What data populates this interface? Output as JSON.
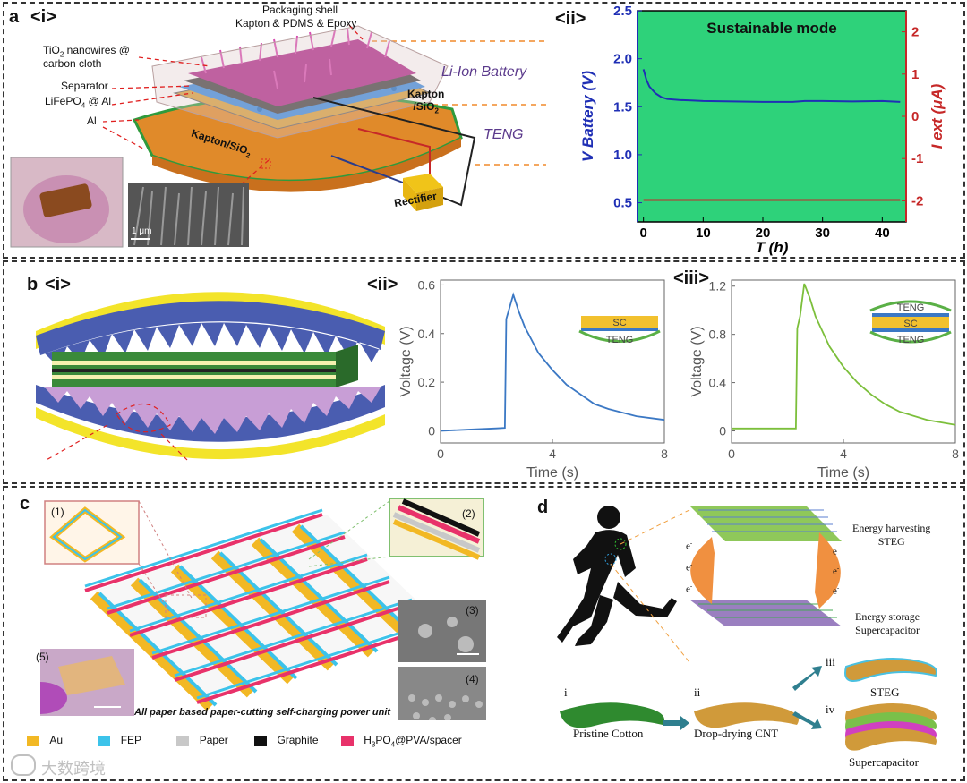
{
  "panel_a": {
    "label": "a",
    "sub_i": "<i>",
    "sub_ii": "<ii>",
    "labels": {
      "packaging_shell": "Packaging shell",
      "packaging_material": "Kapton & PDMS & Epoxy",
      "tio2_a": "TiO",
      "tio2_b": "2",
      "tio2_c": " nanowires @",
      "carbon_cloth": "carbon cloth",
      "separator": "Separator",
      "lifepo4_a": "LiFePO",
      "lifepo4_b": "4",
      "lifepo4_c": " @ Al",
      "al": "Al",
      "li_ion_battery": "Li-Ion Battery",
      "kapton_sio2_right_a": "Kapton",
      "kapton_sio2_right_b": "/SiO",
      "kapton_sio2_right_c": "2",
      "teng": "TENG",
      "kapton_sio2_center_a": "Kapton/SiO",
      "kapton_sio2_center_b": "2",
      "rectifier": "Rectifier",
      "scale_bar": "1 μm"
    }
  },
  "chart_data": [
    {
      "type": "line",
      "title": "Sustainable mode",
      "xlabel": "T (h)",
      "ylabel_left": "V Battery (V)",
      "ylabel_right": "I ext (μA)",
      "xlim": [
        -1,
        44
      ],
      "ylim_left": [
        0.3,
        2.5
      ],
      "ylim_right": [
        -2.5,
        2.5
      ],
      "xticks": [
        "0",
        "10",
        "20",
        "30",
        "40"
      ],
      "yticks_left": [
        "0.5",
        "1.0",
        "1.5",
        "2.0",
        "2.5"
      ],
      "yticks_right": [
        "-2",
        "-1",
        "0",
        "1",
        "2"
      ],
      "series": [
        {
          "name": "V Battery",
          "axis": "left",
          "color": "#1f2fb5",
          "x": [
            0,
            0.5,
            1,
            2,
            3,
            4,
            6,
            8,
            10,
            15,
            20,
            25,
            27,
            30,
            35,
            40,
            43
          ],
          "y": [
            1.89,
            1.78,
            1.71,
            1.64,
            1.6,
            1.58,
            1.57,
            1.565,
            1.56,
            1.555,
            1.55,
            1.55,
            1.56,
            1.56,
            1.555,
            1.56,
            1.55
          ]
        },
        {
          "name": "I ext",
          "axis": "right",
          "color": "#c62828",
          "x": [
            0,
            43
          ],
          "y": [
            -1.98,
            -1.98
          ]
        }
      ]
    },
    {
      "type": "line",
      "panel": "b-ii",
      "xlabel": "Time (s)",
      "ylabel": "Voltage (V)",
      "xlim": [
        0,
        8
      ],
      "ylim": [
        -0.05,
        0.62
      ],
      "xticks": [
        "0",
        "4",
        "8"
      ],
      "yticks": [
        "0",
        "0.2",
        "0.4",
        "0.6"
      ],
      "series": [
        {
          "name": "SC + TENG",
          "color": "#3b78c4",
          "x": [
            0,
            1,
            2,
            2.3,
            2.35,
            2.45,
            2.6,
            2.8,
            3.0,
            3.5,
            4,
            4.5,
            5,
            5.5,
            6,
            7,
            8
          ],
          "y": [
            0.0,
            0.005,
            0.01,
            0.012,
            0.46,
            0.5,
            0.56,
            0.49,
            0.43,
            0.32,
            0.25,
            0.19,
            0.15,
            0.11,
            0.09,
            0.06,
            0.045
          ]
        }
      ],
      "inset": {
        "top": "SC",
        "bottom": "TENG"
      }
    },
    {
      "type": "line",
      "panel": "b-iii",
      "xlabel": "Time (s)",
      "ylabel": "Voltage (V)",
      "xlim": [
        0,
        8
      ],
      "ylim": [
        -0.1,
        1.25
      ],
      "xticks": [
        "0",
        "4",
        "8"
      ],
      "yticks": [
        "0",
        "0.4",
        "0.8",
        "1.2"
      ],
      "series": [
        {
          "name": "TENG + SC + TENG",
          "color": "#7cbf3b",
          "x": [
            0,
            1,
            2,
            2.3,
            2.35,
            2.45,
            2.6,
            2.8,
            3.0,
            3.5,
            4,
            4.5,
            5,
            5.5,
            6,
            7,
            8
          ],
          "y": [
            0.02,
            0.02,
            0.02,
            0.02,
            0.85,
            0.95,
            1.22,
            1.1,
            0.95,
            0.7,
            0.53,
            0.4,
            0.3,
            0.22,
            0.16,
            0.09,
            0.05
          ]
        }
      ],
      "inset": {
        "top": "TENG",
        "middle": "SC",
        "bottom": "TENG"
      }
    }
  ],
  "panel_b": {
    "label": "b",
    "sub_i": "<i>",
    "sub_ii": "<ii>",
    "sub_iii": "<iii>"
  },
  "panel_c": {
    "label": "c",
    "inset_1": "(1)",
    "inset_2": "(2)",
    "inset_3": "(3)",
    "inset_4": "(4)",
    "inset_5": "(5)",
    "caption": "All paper based paper-cutting self-charging power unit",
    "legend": [
      {
        "name": "Au",
        "color": "#f2b824"
      },
      {
        "name": "FEP",
        "color": "#3cc3ea"
      },
      {
        "name": "Paper",
        "color": "#c8c8c8"
      },
      {
        "name": "Graphite",
        "color": "#111111"
      },
      {
        "name": "spacer",
        "color": "#e8326a"
      }
    ],
    "spacer_a": "H",
    "spacer_b": "3",
    "spacer_c": "PO",
    "spacer_d": "4",
    "spacer_e": "@PVA/spacer",
    "watermark": "大数跨境"
  },
  "panel_d": {
    "label": "d",
    "energy_harvesting": "Energy harvesting",
    "steg_top": "STEG",
    "energy_storage": "Energy storage",
    "supercapacitor_top": "Supercapacitor",
    "electron": "e",
    "electron_sup": "-",
    "step_i": "i",
    "step_ii": "ii",
    "step_iii": "iii",
    "step_iv": "iv",
    "pristine_cotton": "Pristine Cotton",
    "drop_drying": "Drop-drying CNT",
    "steg": "STEG",
    "supercapacitor": "Supercapacitor"
  }
}
